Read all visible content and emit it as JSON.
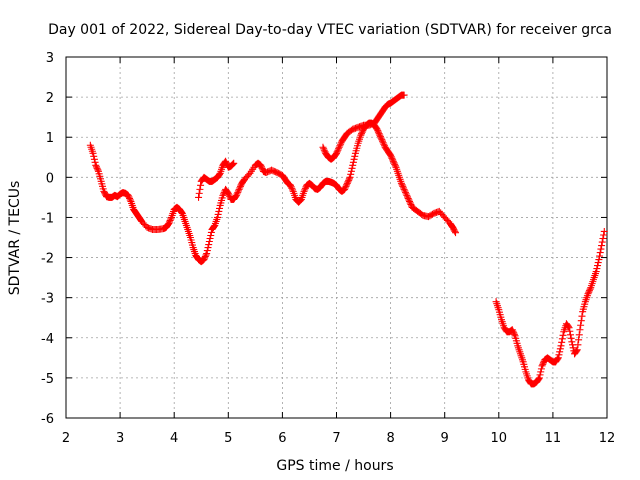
{
  "chart_data": {
    "type": "scatter",
    "title": "Day 001 of 2022, Sidereal Day-to-day VTEC variation (SDTVAR) for receiver grca",
    "xlabel": "GPS time / hours",
    "ylabel": "SDTVAR / TECUs",
    "xlim": [
      2,
      12
    ],
    "ylim": [
      -6,
      3
    ],
    "xticks": [
      2,
      3,
      4,
      5,
      6,
      7,
      8,
      9,
      10,
      11,
      12
    ],
    "yticks": [
      -6,
      -5,
      -4,
      -3,
      -2,
      -1,
      0,
      1,
      2,
      3
    ],
    "grid": true,
    "marker": "+",
    "color": "#ff0000",
    "series": [
      {
        "name": "segment-1",
        "x": [
          2.45,
          2.5,
          2.55,
          2.6,
          2.65,
          2.7,
          2.75,
          2.8,
          2.85,
          2.9,
          2.95,
          3.0,
          3.05,
          3.1,
          3.15,
          3.2,
          3.25,
          3.3,
          3.35,
          3.4,
          3.5,
          3.6,
          3.7,
          3.8,
          3.85,
          3.9,
          3.95,
          4.0,
          4.05,
          4.1,
          4.15,
          4.2,
          4.25,
          4.3,
          4.35,
          4.4,
          4.45,
          4.5,
          4.55,
          4.6,
          4.65,
          4.7,
          4.75,
          4.8,
          4.85,
          4.9,
          4.95,
          5.0,
          5.05,
          5.1,
          5.15,
          5.2,
          5.25,
          5.3,
          5.4,
          5.5,
          5.55,
          5.6,
          5.65,
          5.7,
          5.8,
          5.9,
          6.0,
          6.05,
          6.1,
          6.15,
          6.2,
          6.25,
          6.3,
          6.35,
          6.4,
          6.45,
          6.5,
          6.55,
          6.6,
          6.65,
          6.7,
          6.75,
          6.8,
          6.85,
          6.9,
          6.95,
          7.0,
          7.05,
          7.1,
          7.15,
          7.2,
          7.25,
          7.3,
          7.35,
          7.4,
          7.45,
          7.5,
          7.55,
          7.6,
          7.65,
          7.7,
          7.75,
          7.8,
          7.85,
          7.9,
          7.95,
          8.0,
          8.05,
          8.1,
          8.15,
          8.2,
          8.25,
          8.3,
          8.35,
          8.4,
          8.5,
          8.6,
          8.7,
          8.8,
          8.9,
          9.0,
          9.1,
          9.15,
          9.2
        ],
        "y": [
          0.8,
          0.6,
          0.3,
          0.15,
          -0.1,
          -0.35,
          -0.48,
          -0.5,
          -0.5,
          -0.45,
          -0.48,
          -0.42,
          -0.38,
          -0.4,
          -0.45,
          -0.6,
          -0.8,
          -0.9,
          -1.0,
          -1.1,
          -1.25,
          -1.3,
          -1.3,
          -1.28,
          -1.25,
          -1.15,
          -1.0,
          -0.8,
          -0.75,
          -0.8,
          -0.9,
          -1.1,
          -1.3,
          -1.5,
          -1.75,
          -1.95,
          -2.05,
          -2.1,
          -2.05,
          -1.9,
          -1.6,
          -1.3,
          -1.2,
          -1.0,
          -0.7,
          -0.45,
          -0.3,
          -0.4,
          -0.55,
          -0.55,
          -0.45,
          -0.3,
          -0.15,
          -0.05,
          0.1,
          0.3,
          0.35,
          0.3,
          0.15,
          0.12,
          0.18,
          0.12,
          0.05,
          -0.05,
          -0.15,
          -0.2,
          -0.35,
          -0.55,
          -0.62,
          -0.55,
          -0.35,
          -0.2,
          -0.15,
          -0.2,
          -0.28,
          -0.3,
          -0.25,
          -0.15,
          -0.1,
          -0.1,
          -0.12,
          -0.15,
          -0.2,
          -0.3,
          -0.35,
          -0.3,
          -0.15,
          0.0,
          0.3,
          0.6,
          0.85,
          1.05,
          1.2,
          1.3,
          1.35,
          1.35,
          1.3,
          1.2,
          1.05,
          0.9,
          0.75,
          0.65,
          0.55,
          0.4,
          0.25,
          0.05,
          -0.15,
          -0.3,
          -0.45,
          -0.6,
          -0.75,
          -0.85,
          -0.95,
          -0.98,
          -0.9,
          -0.85,
          -1.0,
          -1.15,
          -1.25,
          -1.38
        ]
      },
      {
        "name": "segment-2",
        "x": [
          4.45,
          4.5,
          4.55,
          4.6,
          4.65,
          4.7,
          4.75,
          4.8,
          4.85,
          4.9,
          4.95,
          5.0,
          5.05,
          5.1
        ],
        "y": [
          -0.5,
          -0.1,
          0.0,
          -0.05,
          -0.1,
          -0.1,
          -0.05,
          0.0,
          0.1,
          0.3,
          0.4,
          0.25,
          0.28,
          0.35
        ]
      },
      {
        "name": "segment-3",
        "x": [
          6.75,
          6.8,
          6.85,
          6.9,
          6.95,
          7.0,
          7.05,
          7.1,
          7.15,
          7.2,
          7.3,
          7.4,
          7.5,
          7.6,
          7.7,
          7.75,
          7.8,
          7.85,
          7.9,
          7.95,
          8.0,
          8.05,
          8.1,
          8.15,
          8.2,
          8.25
        ],
        "y": [
          0.75,
          0.6,
          0.5,
          0.45,
          0.5,
          0.6,
          0.75,
          0.9,
          1.0,
          1.1,
          1.2,
          1.25,
          1.3,
          1.3,
          1.35,
          1.45,
          1.55,
          1.65,
          1.75,
          1.82,
          1.85,
          1.9,
          1.95,
          2.0,
          2.05,
          2.05
        ]
      },
      {
        "name": "segment-4",
        "x": [
          9.95,
          10.0,
          10.05,
          10.1,
          10.15,
          10.2,
          10.25,
          10.3,
          10.35,
          10.4,
          10.45,
          10.5,
          10.55,
          10.6,
          10.65,
          10.7,
          10.75,
          10.8,
          10.85,
          10.9,
          10.95,
          11.0,
          11.05,
          11.1,
          11.15,
          11.2,
          11.25,
          11.3,
          11.35,
          11.4,
          11.45,
          11.5,
          11.55,
          11.6,
          11.65,
          11.7,
          11.75,
          11.8,
          11.85,
          11.9,
          11.95
        ],
        "y": [
          -3.1,
          -3.3,
          -3.55,
          -3.75,
          -3.85,
          -3.85,
          -3.8,
          -3.95,
          -4.2,
          -4.4,
          -4.6,
          -4.85,
          -5.05,
          -5.15,
          -5.15,
          -5.1,
          -5.0,
          -4.7,
          -4.55,
          -4.5,
          -4.55,
          -4.6,
          -4.6,
          -4.5,
          -4.2,
          -3.85,
          -3.65,
          -3.75,
          -4.1,
          -4.4,
          -4.3,
          -3.8,
          -3.35,
          -3.1,
          -2.9,
          -2.75,
          -2.55,
          -2.35,
          -2.05,
          -1.7,
          -1.35
        ]
      }
    ]
  }
}
